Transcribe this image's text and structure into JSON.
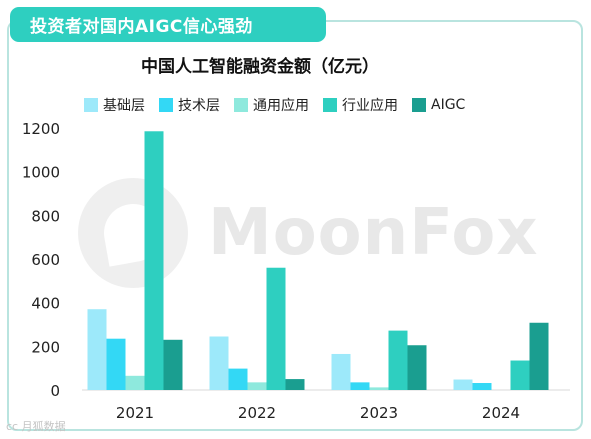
{
  "header": {
    "title": "投资者对国内AIGC信心强劲"
  },
  "watermark": {
    "text": "MoonFox",
    "logo_icon": "moonfox-logo-icon"
  },
  "footer": {
    "source_logo": "cc 月狐数据"
  },
  "colors": {
    "frame_border": "#b9e4df",
    "title_bg": "#2ecfc0"
  },
  "chart_data": {
    "type": "bar",
    "title": "中国人工智能融资金额（亿元）",
    "categories": [
      "2021",
      "2022",
      "2023",
      "2024"
    ],
    "ylim": [
      0,
      1200
    ],
    "yticks": [
      0,
      200,
      400,
      600,
      800,
      1000,
      1200
    ],
    "grid": false,
    "legend_position": "top",
    "series": [
      {
        "name": "基础层",
        "color": "#9de9fa",
        "values": [
          370,
          245,
          165,
          48
        ]
      },
      {
        "name": "技术层",
        "color": "#33d8f5",
        "values": [
          235,
          98,
          35,
          32
        ]
      },
      {
        "name": "通用应用",
        "color": "#8ee9dd",
        "values": [
          65,
          35,
          12,
          0
        ]
      },
      {
        "name": "行业应用",
        "color": "#2ecfc0",
        "values": [
          1185,
          560,
          272,
          135
        ]
      },
      {
        "name": "AIGC",
        "color": "#1a9e90",
        "values": [
          230,
          50,
          205,
          308
        ]
      }
    ]
  }
}
